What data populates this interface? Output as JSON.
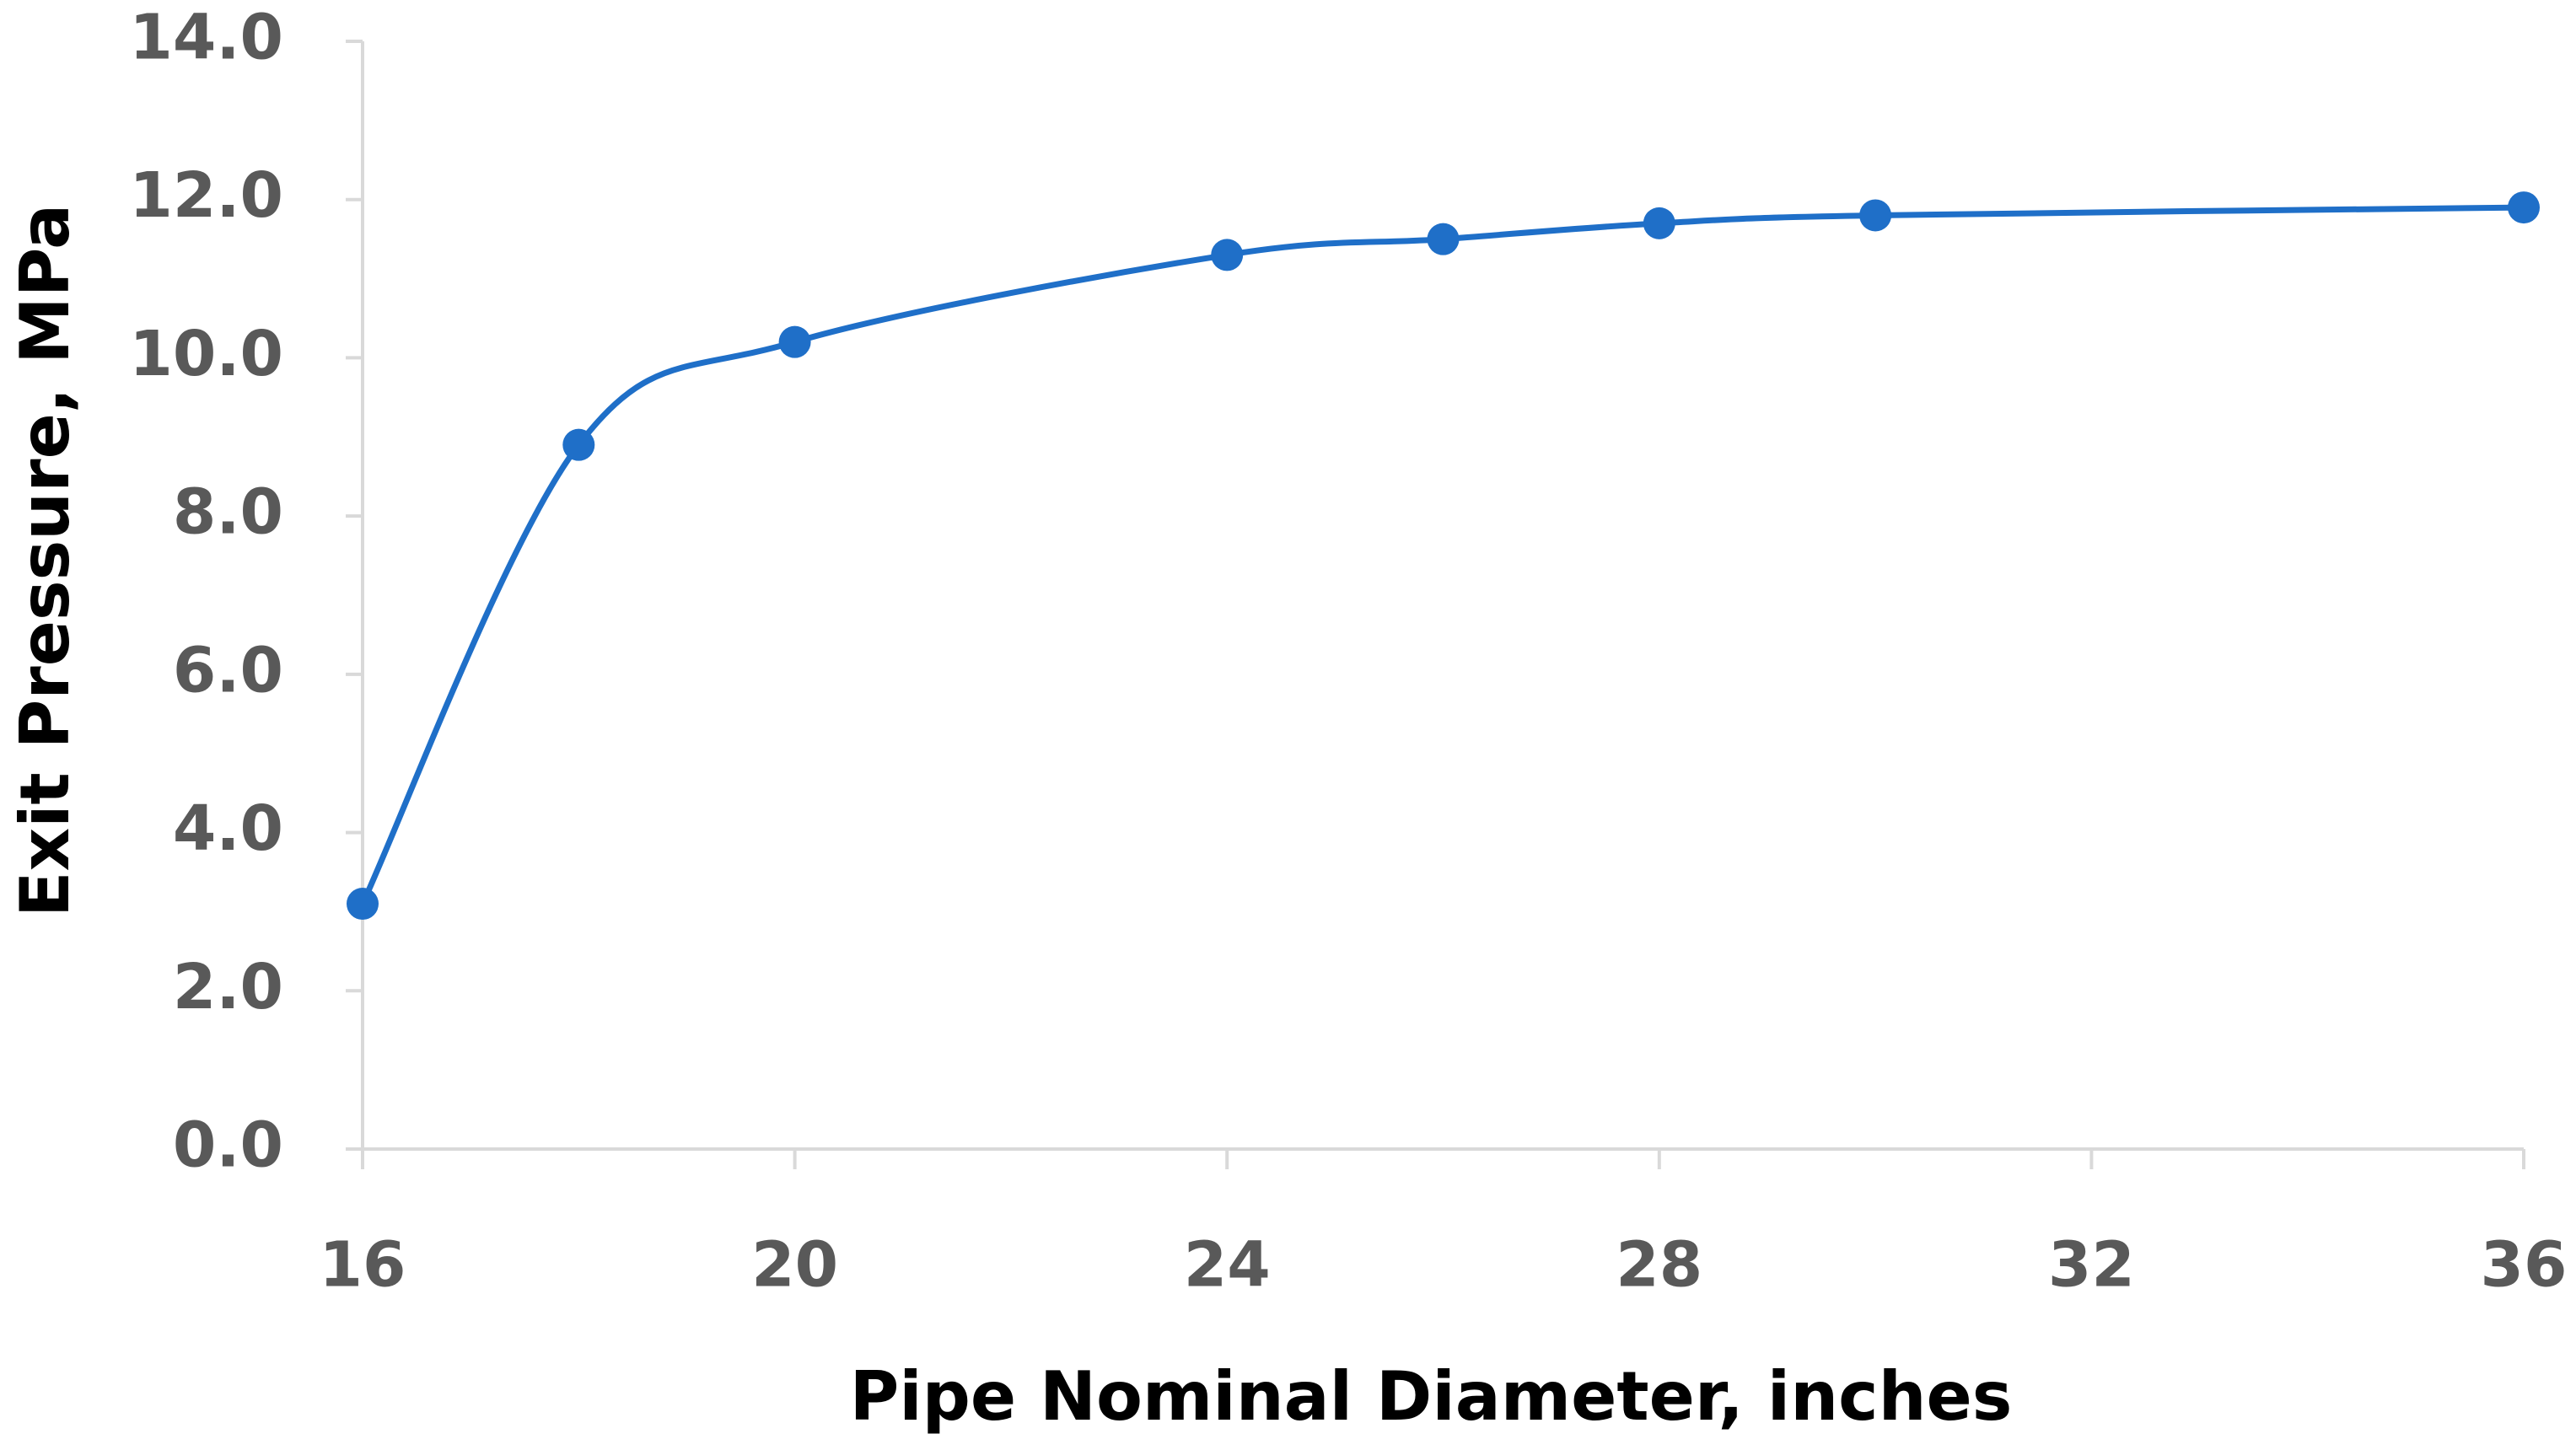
{
  "chart_data": {
    "type": "line",
    "x_label": "Pipe Nominal Diameter, inches",
    "y_label": "Exit Pressure, MPa",
    "x": [
      16,
      18,
      20,
      24,
      26,
      28,
      30,
      36
    ],
    "series": [
      {
        "color": "#1f6fc8",
        "values": [
          3.1,
          8.9,
          10.2,
          11.3,
          11.5,
          11.7,
          11.8,
          11.9
        ]
      }
    ],
    "xlim": [
      16,
      36
    ],
    "xticks": [
      16,
      20,
      24,
      28,
      32,
      36
    ],
    "ylim": [
      0,
      14
    ],
    "yticks": [
      {
        "value": 0,
        "label": "0.0"
      },
      {
        "value": 2,
        "label": "2.0"
      },
      {
        "value": 4,
        "label": "4.0"
      },
      {
        "value": 6,
        "label": "6.0"
      },
      {
        "value": 8,
        "label": "8.0"
      },
      {
        "value": 10,
        "label": "10.0"
      },
      {
        "value": 12,
        "label": "12.0"
      },
      {
        "value": 14,
        "label": "14.0"
      }
    ],
    "grid": false,
    "smooth": true
  }
}
